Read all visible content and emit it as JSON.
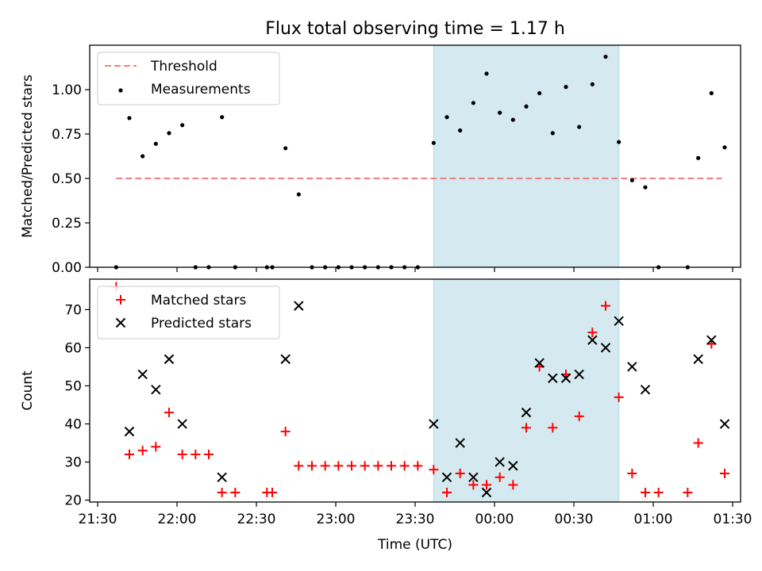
{
  "title": "Flux total observing time = 1.17 h",
  "chart_data": [
    {
      "type": "scatter",
      "ylabel": "Matched/Predicted stars",
      "xlim": [
        "21:27",
        "01:33"
      ],
      "ylim": [
        0,
        1.25
      ],
      "yticks": [
        "0.00",
        "0.25",
        "0.50",
        "0.75",
        "1.00"
      ],
      "legend": "top-left",
      "highlight_span": {
        "from": "23:37",
        "to": "00:47",
        "color": "#d4eaf0"
      },
      "threshold": {
        "name": "Threshold",
        "value": 0.5,
        "from": "21:37",
        "to": "01:26",
        "color": "#f08080",
        "style": "dashed"
      },
      "series": [
        {
          "name": "Measurements",
          "color": "#000000",
          "marker": "dot",
          "points": [
            [
              "21:37",
              0.0
            ],
            [
              "21:42",
              0.84
            ],
            [
              "21:47",
              0.625
            ],
            [
              "21:52",
              0.695
            ],
            [
              "21:57",
              0.755
            ],
            [
              "22:02",
              0.8
            ],
            [
              "22:07",
              0.0
            ],
            [
              "22:12",
              0.0
            ],
            [
              "22:17",
              0.845
            ],
            [
              "22:22",
              0.0
            ],
            [
              "22:34",
              0.0
            ],
            [
              "22:36",
              0.0
            ],
            [
              "22:41",
              0.67
            ],
            [
              "22:46",
              0.41
            ],
            [
              "22:51",
              0.0
            ],
            [
              "22:56",
              0.0
            ],
            [
              "23:01",
              0.0
            ],
            [
              "23:06",
              0.0
            ],
            [
              "23:11",
              0.0
            ],
            [
              "23:16",
              0.0
            ],
            [
              "23:21",
              0.0
            ],
            [
              "23:26",
              0.0
            ],
            [
              "23:31",
              0.0
            ],
            [
              "23:37",
              0.7
            ],
            [
              "23:42",
              0.845
            ],
            [
              "23:47",
              0.77
            ],
            [
              "23:52",
              0.925
            ],
            [
              "23:57",
              1.09
            ],
            [
              "00:02",
              0.87
            ],
            [
              "00:07",
              0.83
            ],
            [
              "00:12",
              0.905
            ],
            [
              "00:17",
              0.98
            ],
            [
              "00:22",
              0.755
            ],
            [
              "00:27",
              1.015
            ],
            [
              "00:32",
              0.79
            ],
            [
              "00:37",
              1.03
            ],
            [
              "00:42",
              1.185
            ],
            [
              "00:47",
              0.705
            ],
            [
              "00:52",
              0.49
            ],
            [
              "00:57",
              0.45
            ],
            [
              "01:02",
              0.0
            ],
            [
              "01:13",
              0.0
            ],
            [
              "01:17",
              0.615
            ],
            [
              "01:22",
              0.98
            ],
            [
              "01:27",
              0.675
            ]
          ]
        }
      ]
    },
    {
      "type": "scatter",
      "ylabel": "Count",
      "xlabel": "Time (UTC)",
      "xlim": [
        "21:27",
        "01:33"
      ],
      "ylim": [
        19.5,
        78
      ],
      "yticks": [
        "20",
        "30",
        "40",
        "50",
        "60",
        "70"
      ],
      "xticks": [
        "21:30",
        "22:00",
        "22:30",
        "23:00",
        "23:30",
        "00:00",
        "00:30",
        "01:00",
        "01:30"
      ],
      "legend": "top-left",
      "highlight_span": {
        "from": "23:37",
        "to": "00:47",
        "color": "#d4eaf0"
      },
      "series": [
        {
          "name": "Matched stars",
          "color": "#ff0000",
          "marker": "plus",
          "points": [
            [
              "21:37",
              76
            ],
            [
              "21:42",
              32
            ],
            [
              "21:47",
              33
            ],
            [
              "21:52",
              34
            ],
            [
              "21:57",
              43
            ],
            [
              "22:02",
              32
            ],
            [
              "22:07",
              32
            ],
            [
              "22:12",
              32
            ],
            [
              "22:17",
              22
            ],
            [
              "22:22",
              22
            ],
            [
              "22:34",
              22
            ],
            [
              "22:36",
              22
            ],
            [
              "22:41",
              38
            ],
            [
              "22:46",
              29
            ],
            [
              "22:51",
              29
            ],
            [
              "22:56",
              29
            ],
            [
              "23:01",
              29
            ],
            [
              "23:06",
              29
            ],
            [
              "23:11",
              29
            ],
            [
              "23:16",
              29
            ],
            [
              "23:21",
              29
            ],
            [
              "23:26",
              29
            ],
            [
              "23:31",
              29
            ],
            [
              "23:37",
              28
            ],
            [
              "23:42",
              22
            ],
            [
              "23:47",
              27
            ],
            [
              "23:52",
              24
            ],
            [
              "23:57",
              24
            ],
            [
              "00:02",
              26
            ],
            [
              "00:07",
              24
            ],
            [
              "00:12",
              39
            ],
            [
              "00:17",
              55
            ],
            [
              "00:22",
              39
            ],
            [
              "00:27",
              53
            ],
            [
              "00:32",
              42
            ],
            [
              "00:37",
              64
            ],
            [
              "00:42",
              71
            ],
            [
              "00:47",
              47
            ],
            [
              "00:52",
              27
            ],
            [
              "00:57",
              22
            ],
            [
              "01:02",
              22
            ],
            [
              "01:13",
              22
            ],
            [
              "01:17",
              35
            ],
            [
              "01:22",
              61
            ],
            [
              "01:27",
              27
            ]
          ]
        },
        {
          "name": "Predicted stars",
          "color": "#000000",
          "marker": "x",
          "points": [
            [
              "21:42",
              38
            ],
            [
              "21:47",
              53
            ],
            [
              "21:52",
              49
            ],
            [
              "21:57",
              57
            ],
            [
              "22:02",
              40
            ],
            [
              "22:17",
              26
            ],
            [
              "22:41",
              57
            ],
            [
              "22:46",
              71
            ],
            [
              "23:37",
              40
            ],
            [
              "23:42",
              26
            ],
            [
              "23:47",
              35
            ],
            [
              "23:52",
              26
            ],
            [
              "23:57",
              22
            ],
            [
              "00:02",
              30
            ],
            [
              "00:07",
              29
            ],
            [
              "00:12",
              43
            ],
            [
              "00:17",
              56
            ],
            [
              "00:22",
              52
            ],
            [
              "00:27",
              52
            ],
            [
              "00:32",
              53
            ],
            [
              "00:37",
              62
            ],
            [
              "00:42",
              60
            ],
            [
              "00:47",
              67
            ],
            [
              "00:52",
              55
            ],
            [
              "00:57",
              49
            ],
            [
              "01:17",
              57
            ],
            [
              "01:22",
              62
            ],
            [
              "01:27",
              40
            ]
          ]
        }
      ]
    }
  ]
}
